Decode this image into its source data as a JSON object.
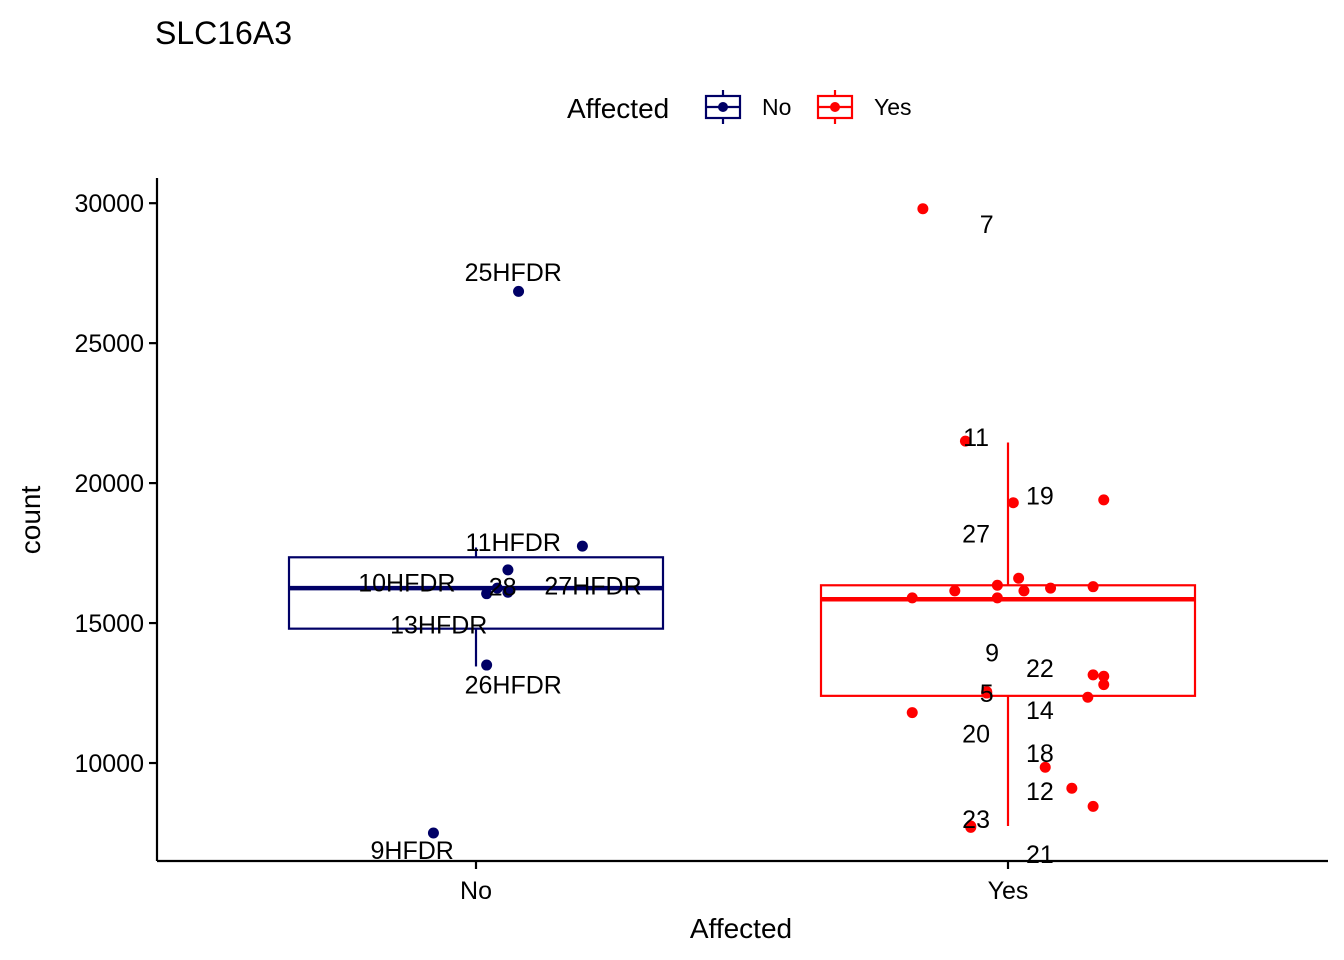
{
  "chart_data": {
    "type": "boxplot",
    "title": "SLC16A3",
    "xlabel": "Affected",
    "ylabel": "count",
    "ylim": [
      6500,
      30900
    ],
    "yticks": [
      10000,
      15000,
      20000,
      25000,
      30000
    ],
    "categories": [
      "No",
      "Yes"
    ],
    "legend": {
      "title": "Affected",
      "position": "top",
      "entries": [
        {
          "label": "No",
          "color": "#000066"
        },
        {
          "label": "Yes",
          "color": "#ff0000"
        }
      ]
    },
    "grid": false,
    "series": [
      {
        "category": "No",
        "color": "#000066",
        "box": {
          "q1": 14800,
          "median": 16250,
          "q3": 17350,
          "whisker_low": 13450,
          "whisker_high": 17700
        },
        "points": [
          {
            "label": "25HFDR",
            "x": 0.08,
            "y": 26850
          },
          {
            "label": "11HFDR",
            "x": 0.2,
            "y": 17750
          },
          {
            "label": "27HFDR",
            "x": 0.06,
            "y": 16900
          },
          {
            "label": "10HFDR",
            "x": 0.04,
            "y": 16250
          },
          {
            "label": "28",
            "x": 0.06,
            "y": 16100
          },
          {
            "label": "13HFDR",
            "x": 0.02,
            "y": 16050
          },
          {
            "label": "26HFDR",
            "x": 0.02,
            "y": 13500
          },
          {
            "label": "9HFDR",
            "x": -0.08,
            "y": 7500
          }
        ]
      },
      {
        "category": "Yes",
        "color": "#ff0000",
        "box": {
          "q1": 12400,
          "median": 15850,
          "q3": 16350,
          "whisker_low": 7750,
          "whisker_high": 21450
        },
        "points": [
          {
            "label": "7",
            "x": -0.16,
            "y": 29800
          },
          {
            "label": "11",
            "x": -0.08,
            "y": 21500
          },
          {
            "label": "19",
            "x": 0.01,
            "y": 19300
          },
          {
            "label": "",
            "x": 0.18,
            "y": 19400
          },
          {
            "label": "27",
            "x": 0.02,
            "y": 16600
          },
          {
            "label": "",
            "x": -0.18,
            "y": 15900
          },
          {
            "label": "",
            "x": -0.1,
            "y": 16150
          },
          {
            "label": "",
            "x": -0.02,
            "y": 16350
          },
          {
            "label": "",
            "x": -0.02,
            "y": 15900
          },
          {
            "label": "",
            "x": 0.03,
            "y": 16150
          },
          {
            "label": "",
            "x": 0.08,
            "y": 16250
          },
          {
            "label": "",
            "x": 0.16,
            "y": 16300
          },
          {
            "label": "9",
            "x": -0.04,
            "y": 12550
          },
          {
            "label": "22",
            "x": 0.16,
            "y": 13150
          },
          {
            "label": "",
            "x": 0.18,
            "y": 13100
          },
          {
            "label": "",
            "x": 0.18,
            "y": 12800
          },
          {
            "label": "5",
            "x": -0.04,
            "y": 12500
          },
          {
            "label": "14",
            "x": 0.15,
            "y": 12350
          },
          {
            "label": "20",
            "x": -0.18,
            "y": 11800
          },
          {
            "label": "18",
            "x": 0.07,
            "y": 9850
          },
          {
            "label": "12",
            "x": 0.12,
            "y": 9100
          },
          {
            "label": "",
            "x": 0.16,
            "y": 8450
          },
          {
            "label": "23",
            "x": -0.07,
            "y": 7750
          },
          {
            "label": "21",
            "x": -0.07,
            "y": 7700
          }
        ]
      }
    ],
    "annotations": [
      {
        "text": "25HFDR",
        "x": 0.07,
        "y": 27550
      },
      {
        "text": "11HFDR",
        "x": 0.07,
        "y": 17900
      },
      {
        "text": "10HFDR",
        "x": -0.13,
        "y": 16450
      },
      {
        "text": "28",
        "x": 0.05,
        "y": 16300
      },
      {
        "text": "27HFDR",
        "x": 0.22,
        "y": 16350
      },
      {
        "text": "13HFDR",
        "x": -0.07,
        "y": 14950
      },
      {
        "text": "26HFDR",
        "x": 0.07,
        "y": 12800
      },
      {
        "text": "9HFDR",
        "x": -0.12,
        "y": 6900
      },
      {
        "text": "7",
        "x": -0.04,
        "y": 29250
      },
      {
        "text": "11",
        "x": -0.06,
        "y": 21650
      },
      {
        "text": "19",
        "x": 0.06,
        "y": 19550
      },
      {
        "text": "27",
        "x": -0.06,
        "y": 18200
      },
      {
        "text": "9",
        "x": -0.03,
        "y": 13950
      },
      {
        "text": "22",
        "x": 0.06,
        "y": 13400
      },
      {
        "text": "5",
        "x": -0.04,
        "y": 12500
      },
      {
        "text": "14",
        "x": 0.06,
        "y": 11900
      },
      {
        "text": "20",
        "x": -0.06,
        "y": 11050
      },
      {
        "text": "18",
        "x": 0.06,
        "y": 10350
      },
      {
        "text": "12",
        "x": 0.06,
        "y": 9000
      },
      {
        "text": "23",
        "x": -0.06,
        "y": 8000
      },
      {
        "text": "21",
        "x": 0.06,
        "y": 6750
      }
    ]
  }
}
